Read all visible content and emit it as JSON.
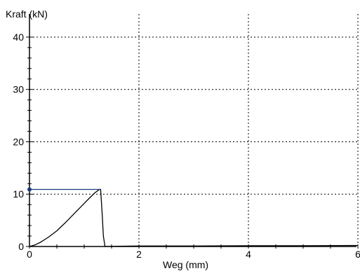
{
  "chart_data": {
    "type": "line",
    "title": "",
    "ylabel": "Kraft (kN)",
    "xlabel": "Weg (mm)",
    "xlim": [
      0,
      6
    ],
    "ylim": [
      0,
      42
    ],
    "x_ticks": [
      0,
      2,
      4,
      6
    ],
    "y_ticks": [
      0,
      10,
      20,
      30,
      40
    ],
    "x_minor_step": 0.5,
    "y_minor_step": 2,
    "grid": "dotted",
    "series": [
      {
        "color": "#000000",
        "x": [
          0,
          0.1,
          0.2,
          0.35,
          0.5,
          0.65,
          0.8,
          0.95,
          1.1,
          1.2,
          1.28,
          1.3,
          1.33,
          1.35,
          1.38,
          1.6,
          2,
          3,
          4,
          5,
          6
        ],
        "y": [
          0,
          0.3,
          0.8,
          1.8,
          3.0,
          4.5,
          6.1,
          7.7,
          9.3,
          10.3,
          10.9,
          10.9,
          6.0,
          2.0,
          0,
          0.05,
          0.1,
          0.1,
          0.15,
          0.15,
          0.2
        ]
      }
    ],
    "marker": {
      "color": "#1f3a7a",
      "x": [
        0,
        1.3
      ],
      "y": 10.9
    }
  }
}
